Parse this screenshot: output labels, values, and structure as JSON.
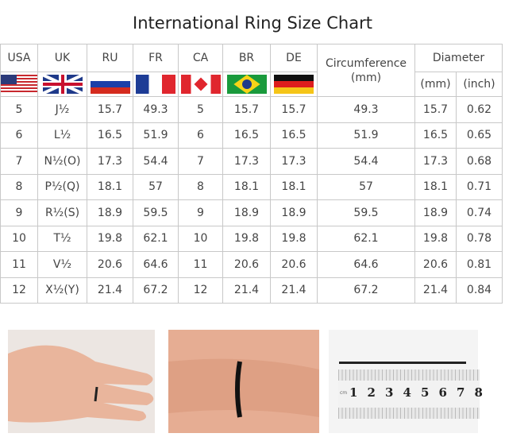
{
  "title": "International Ring Size Chart",
  "chart_data": {
    "type": "table",
    "title": "International Ring Size Chart",
    "columns": [
      "USA",
      "UK",
      "RU",
      "FR",
      "CA",
      "BR",
      "DE",
      "Circumference (mm)",
      "Diameter (mm)",
      "Diameter (inch)"
    ],
    "header": {
      "usa": "USA",
      "uk": "UK",
      "ru": "RU",
      "fr": "FR",
      "ca": "CA",
      "br": "BR",
      "de": "DE",
      "circumference": "Circumference",
      "circumference_unit": "(mm)",
      "diameter": "Diameter",
      "diameter_mm": "(mm)",
      "diameter_inch": "(inch)"
    },
    "flags": [
      "us-flag",
      "uk-flag",
      "russia-flag",
      "france-flag",
      "canada-flag",
      "brazil-flag",
      "germany-flag"
    ],
    "rows": [
      [
        "5",
        "J½",
        "15.7",
        "49.3",
        "5",
        "15.7",
        "15.7",
        "49.3",
        "15.7",
        "0.62"
      ],
      [
        "6",
        "L½",
        "16.5",
        "51.9",
        "6",
        "16.5",
        "16.5",
        "51.9",
        "16.5",
        "0.65"
      ],
      [
        "7",
        "N½(O)",
        "17.3",
        "54.4",
        "7",
        "17.3",
        "17.3",
        "54.4",
        "17.3",
        "0.68"
      ],
      [
        "8",
        "P½(Q)",
        "18.1",
        "57",
        "8",
        "18.1",
        "18.1",
        "57",
        "18.1",
        "0.71"
      ],
      [
        "9",
        "R½(S)",
        "18.9",
        "59.5",
        "9",
        "18.9",
        "18.9",
        "59.5",
        "18.9",
        "0.74"
      ],
      [
        "10",
        "T½",
        "19.8",
        "62.1",
        "10",
        "19.8",
        "19.8",
        "62.1",
        "19.8",
        "0.78"
      ],
      [
        "11",
        "V½",
        "20.6",
        "64.6",
        "11",
        "20.6",
        "20.6",
        "64.6",
        "20.6",
        "0.81"
      ],
      [
        "12",
        "X½(Y)",
        "21.4",
        "67.2",
        "12",
        "21.4",
        "21.4",
        "67.2",
        "21.4",
        "0.84"
      ]
    ]
  },
  "photos": {
    "ruler_numbers": [
      "1",
      "2",
      "3",
      "4",
      "5",
      "6",
      "7",
      "8"
    ],
    "ruler_unit": "cm"
  }
}
